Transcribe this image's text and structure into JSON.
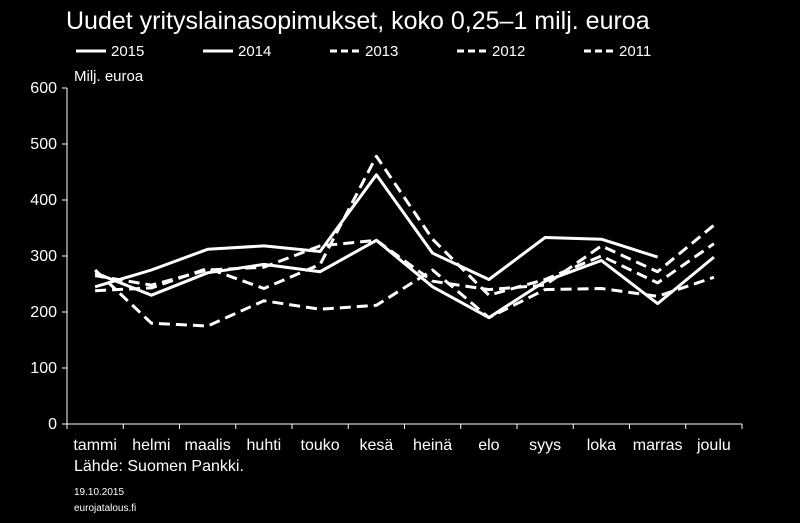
{
  "chart_data": {
    "type": "line",
    "title": "Uudet yrityslainasopimukset, koko 0,25–1 milj. euroa",
    "unit_label": "Milj. euroa",
    "xlabel": "",
    "ylabel": "",
    "ylim": [
      0,
      600
    ],
    "yticks": [
      0,
      100,
      200,
      300,
      400,
      500,
      600
    ],
    "grid": false,
    "legend_position": "top",
    "categories": [
      "tammi",
      "helmi",
      "maalis",
      "huhti",
      "touko",
      "kesä",
      "heinä",
      "elo",
      "syys",
      "loka",
      "marras",
      "joulu"
    ],
    "series": [
      {
        "name": "2015",
        "dash": "solid",
        "values": [
          245,
          275,
          312,
          318,
          308,
          445,
          305,
          258,
          333,
          330,
          298,
          null
        ]
      },
      {
        "name": "2014",
        "dash": "solid",
        "values": [
          270,
          230,
          270,
          285,
          272,
          328,
          245,
          190,
          255,
          292,
          215,
          298
        ]
      },
      {
        "name": "2013",
        "dash": "dashed",
        "values": [
          275,
          180,
          175,
          220,
          205,
          212,
          275,
          190,
          240,
          242,
          228,
          262
        ]
      },
      {
        "name": "2012",
        "dash": "dashed",
        "values": [
          265,
          248,
          275,
          280,
          318,
          328,
          255,
          240,
          248,
          318,
          272,
          355
        ]
      },
      {
        "name": "2011",
        "dash": "dashed",
        "values": [
          238,
          243,
          278,
          242,
          285,
          478,
          330,
          230,
          258,
          300,
          252,
          322
        ]
      }
    ],
    "source": "Lähde: Suomen Pankki.",
    "date": "19.10.2015",
    "site": "eurojatalous.fi"
  }
}
